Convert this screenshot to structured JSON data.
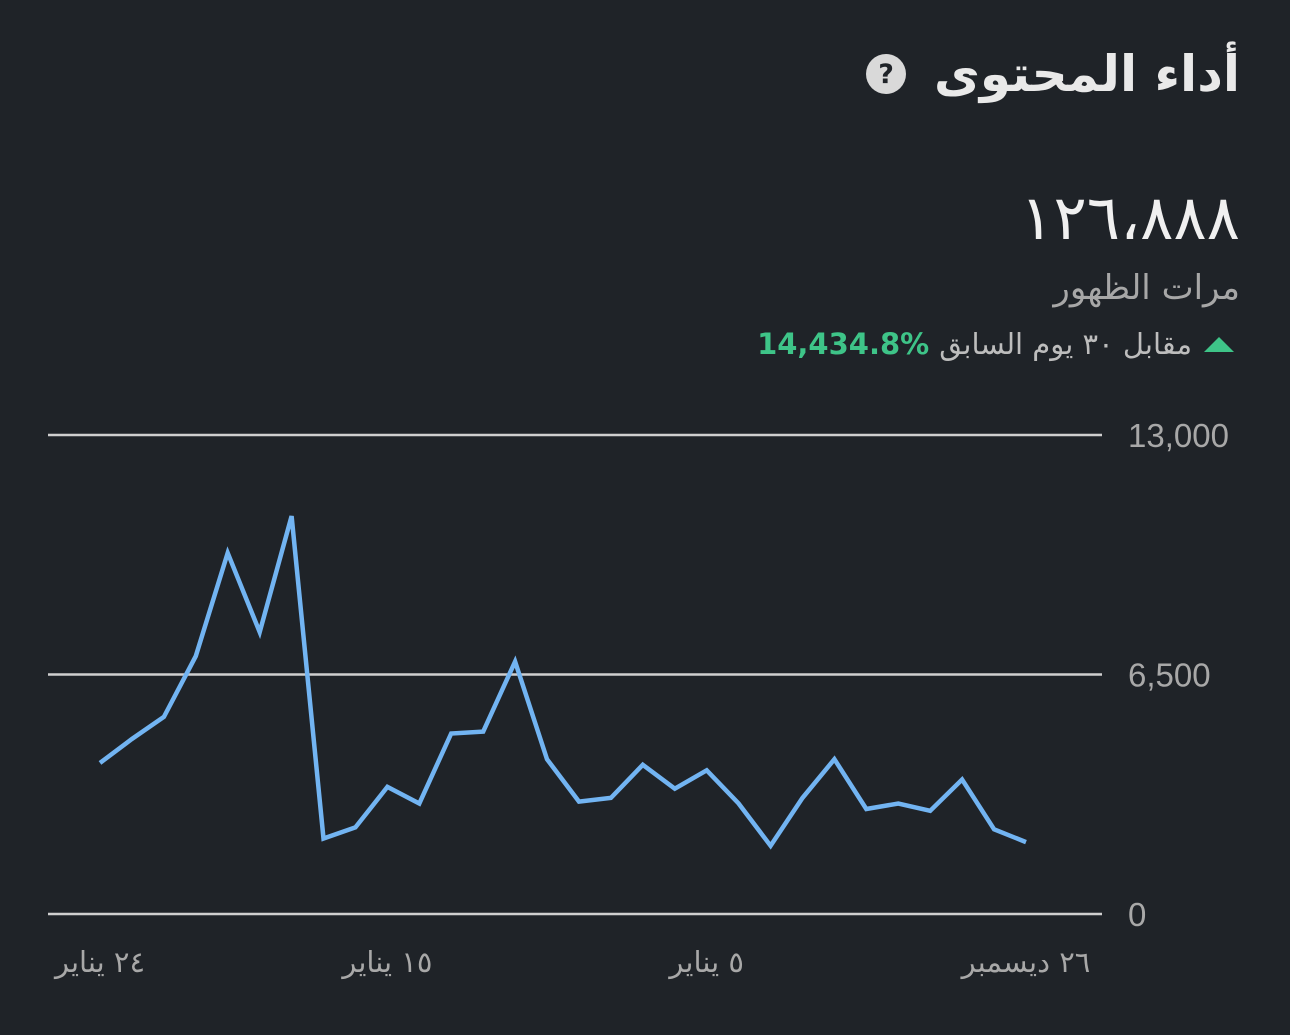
{
  "header": {
    "title": "أداء المحتوى",
    "help_icon": "question-circle-icon"
  },
  "metric": {
    "value": "١٢٦،٨٨٨",
    "label": "مرات الظهور",
    "comparison_text": "مقابل ٣٠ يوم السابق",
    "change_value": "14,434.8%",
    "change_direction": "up",
    "change_color": "#3ec488"
  },
  "colors": {
    "background": "#1f2328",
    "line": "#72b4f2",
    "grid": "#cfcfcf"
  },
  "chart_data": {
    "type": "line",
    "ylim": [
      0,
      13000
    ],
    "y_ticks": [
      "13,000",
      "6,500",
      "0"
    ],
    "y_tick_values": [
      13000,
      6500,
      0
    ],
    "x_ticks": [
      "٢٤ يناير",
      "١٥ يناير",
      "٥ يناير",
      "٢٦ ديسمبر"
    ],
    "x_tick_values": [
      0,
      9,
      19,
      29
    ],
    "x_direction": "right-to-left",
    "grid": true,
    "series": [
      {
        "values": [
          4100,
          4750,
          5350,
          7000,
          9800,
          7650,
          10800,
          2050,
          2350,
          3450,
          3000,
          4900,
          4950,
          6850,
          4200,
          3050,
          3150,
          4050,
          3400,
          3900,
          3000,
          1850,
          3150,
          4200,
          2850,
          3000,
          2800,
          3650,
          2300,
          1950
        ]
      }
    ]
  }
}
